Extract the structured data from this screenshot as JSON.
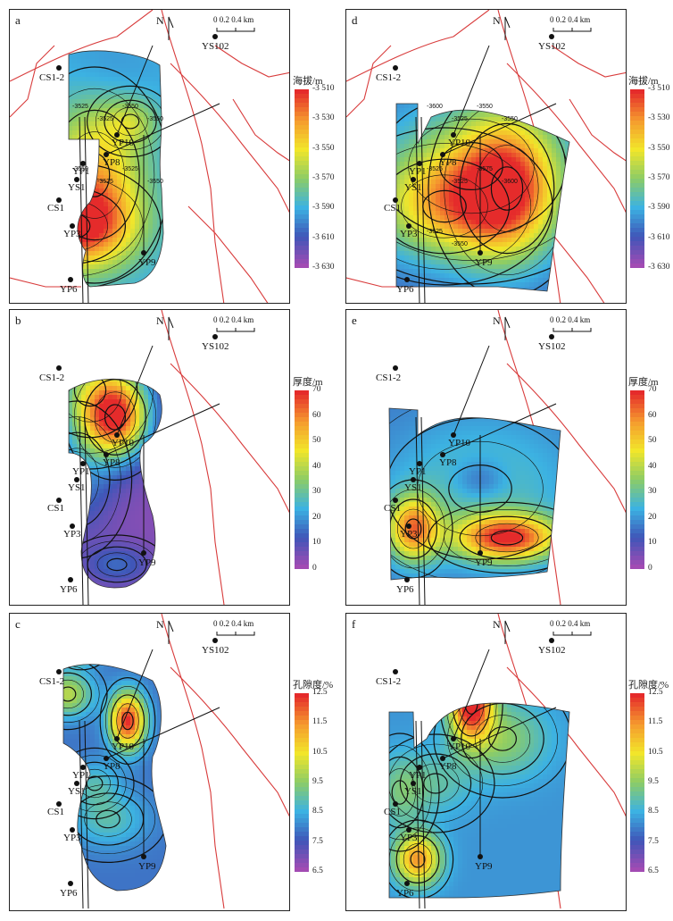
{
  "figure": {
    "panels": [
      {
        "letter": "a",
        "mode": "elev"
      },
      {
        "letter": "b",
        "mode": "thick"
      },
      {
        "letter": "c",
        "mode": "poro"
      },
      {
        "letter": "d",
        "mode": "elev"
      },
      {
        "letter": "e",
        "mode": "thick"
      },
      {
        "letter": "f",
        "mode": "poro"
      }
    ],
    "north_label": "N",
    "scale_label": "0 0.2 0.4 km",
    "wells": [
      "YS102",
      "CS1-2",
      "YP10",
      "YP8",
      "YP1",
      "YS1",
      "CS1",
      "YP3",
      "YP9",
      "YP6"
    ],
    "contour_labels_a": [
      "-3525",
      "-3525",
      "-3550",
      "-3550",
      "-3550",
      "-3525",
      "-3525",
      "-3550"
    ],
    "contour_labels_d": [
      "-3600",
      "-3525",
      "-3550",
      "-3550",
      "-3525",
      "-3525",
      "-3575",
      "-3600",
      "-3525",
      "-3550"
    ]
  },
  "colorbars": [
    {
      "title": "海拔/m",
      "ticks": [
        "-3 510",
        "-3 530",
        "-3 550",
        "-3 570",
        "-3 590",
        "-3 610",
        "-3 630"
      ]
    },
    {
      "title": "厚度/m",
      "ticks": [
        "70",
        "60",
        "50",
        "40",
        "30",
        "20",
        "10",
        "0"
      ]
    },
    {
      "title": "孔隙度/%",
      "ticks": [
        "12.5",
        "11.5",
        "10.5",
        "9.5",
        "8.5",
        "7.5",
        "6.5"
      ]
    }
  ],
  "colors": {
    "ramp": [
      "#a24bb3",
      "#3f56b8",
      "#3cb2e2",
      "#8ccc66",
      "#f2e62a",
      "#f59a2e",
      "#e52b2b"
    ],
    "fault": "#d83b3b"
  },
  "chart_data": {
    "type": "heatmap",
    "maps": [
      {
        "panel": "a",
        "quantity": "海拔/m",
        "range": [
          -3630,
          -3510
        ]
      },
      {
        "panel": "b",
        "quantity": "厚度/m",
        "range": [
          0,
          70
        ]
      },
      {
        "panel": "c",
        "quantity": "孔隙度/%",
        "range": [
          6.5,
          12.5
        ]
      },
      {
        "panel": "d",
        "quantity": "海拔/m",
        "range": [
          -3630,
          -3510
        ]
      },
      {
        "panel": "e",
        "quantity": "厚度/m",
        "range": [
          0,
          70
        ]
      },
      {
        "panel": "f",
        "quantity": "孔隙度/%",
        "range": [
          6.5,
          12.5
        ]
      }
    ]
  }
}
